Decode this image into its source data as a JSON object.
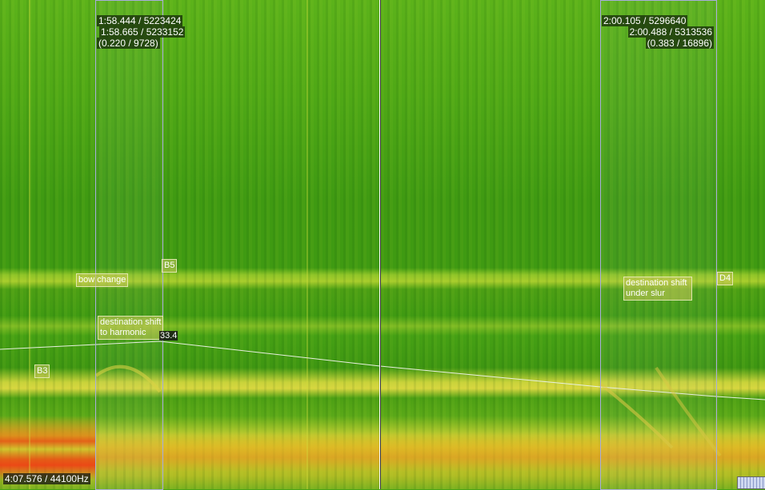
{
  "selections": [
    {
      "start": "1:58.444 / 5223424",
      "end": "1:58.665 / 5233152",
      "duration": "(0.220 / 9728)"
    },
    {
      "start": "2:00.105 / 5296640",
      "end": "2:00.488 / 5313536",
      "duration": "(0.383 / 16896)"
    }
  ],
  "annotations": {
    "bow_change": "bow change",
    "b5": "B5",
    "dest_harmonic_1": "destination shift",
    "dest_harmonic_2": "to harmonic",
    "b3": "B3",
    "dest_slur_1": "destination shift",
    "dest_slur_2": "under slur",
    "d4": "D4",
    "pitch_value": "33.4"
  },
  "status": {
    "position": "4:07.576 / 44100Hz"
  },
  "colors": {
    "low": "#3f9a12",
    "mid": "#d8d640",
    "high": "#e84a14",
    "selection": "#a8acdc"
  },
  "icons": {
    "scroll": "overview-scrollbar"
  }
}
